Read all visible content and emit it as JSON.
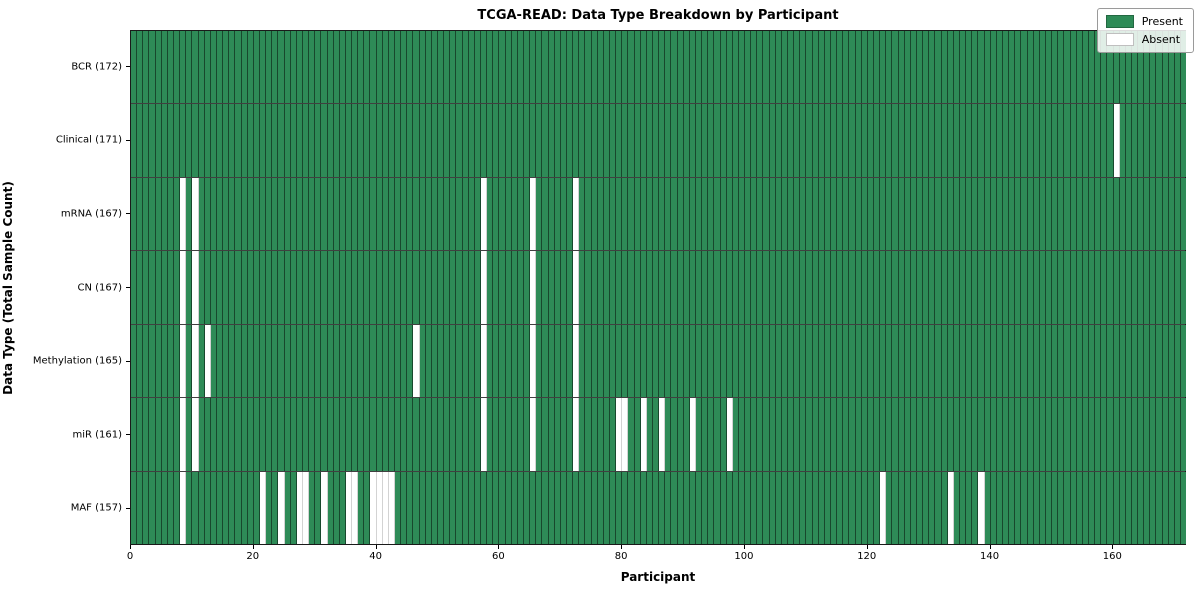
{
  "figure": {
    "title": "TCGA-READ: Data Type Breakdown by Participant",
    "xlabel": "Participant",
    "ylabel": "Data Type (Total Sample Count)"
  },
  "legend": {
    "items": [
      {
        "label": "Present",
        "color": "#2e8b57"
      },
      {
        "label": "Absent",
        "color": "#ffffff"
      }
    ]
  },
  "chart_data": {
    "type": "heatmap",
    "title": "TCGA-READ: Data Type Breakdown by Participant",
    "xlabel": "Participant",
    "ylabel": "Data Type (Total Sample Count)",
    "legend_position": "upper right",
    "grid": "cell-borders",
    "colors": {
      "present": "#2e8b57",
      "absent": "#ffffff"
    },
    "x_range": [
      0,
      172
    ],
    "n_participants": 172,
    "x_ticks": [
      0,
      20,
      40,
      60,
      80,
      100,
      120,
      140,
      160
    ],
    "value_encoding": {
      "present": 1,
      "absent": 0
    },
    "rows": [
      {
        "label": "BCR (172)",
        "name": "BCR",
        "total": 172,
        "absent": []
      },
      {
        "label": "Clinical (171)",
        "name": "Clinical",
        "total": 171,
        "absent": [
          160
        ]
      },
      {
        "label": "mRNA (167)",
        "name": "mRNA",
        "total": 167,
        "absent": [
          8,
          10,
          57,
          65,
          72
        ]
      },
      {
        "label": "CN (167)",
        "name": "CN",
        "total": 167,
        "absent": [
          8,
          10,
          57,
          65,
          72
        ]
      },
      {
        "label": "Methylation (165)",
        "name": "Methylation",
        "total": 165,
        "absent": [
          8,
          10,
          12,
          46,
          57,
          65,
          72
        ]
      },
      {
        "label": "miR (161)",
        "name": "miR",
        "total": 161,
        "absent": [
          8,
          10,
          57,
          65,
          72,
          79,
          80,
          83,
          86,
          91,
          97
        ]
      },
      {
        "label": "MAF (157)",
        "name": "MAF",
        "total": 157,
        "absent": [
          8,
          21,
          24,
          27,
          28,
          31,
          35,
          36,
          39,
          40,
          41,
          42,
          122,
          133,
          138
        ]
      }
    ]
  }
}
